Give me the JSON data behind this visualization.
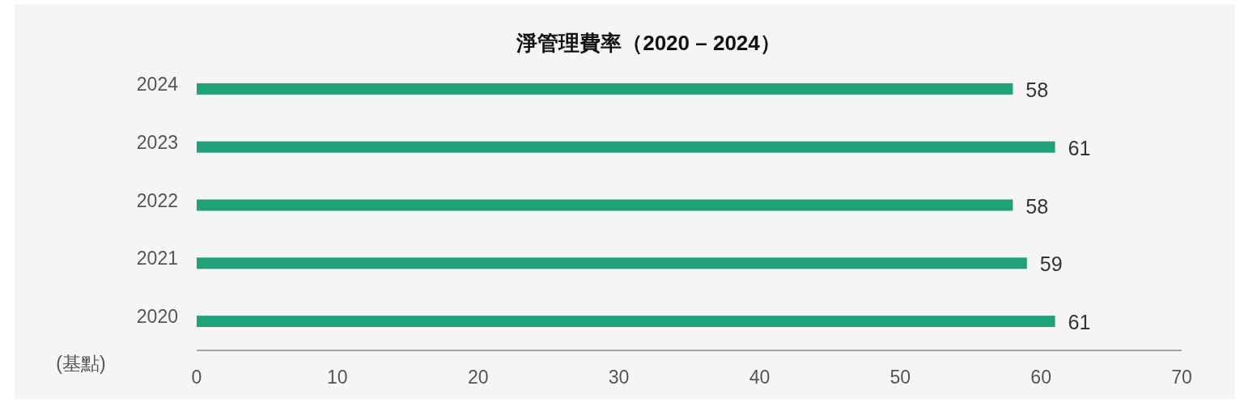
{
  "chart_data": {
    "type": "bar",
    "orientation": "horizontal",
    "title": "淨管理費率（2020 – 2024）",
    "xlabel": "(基點)",
    "categories": [
      "2024",
      "2023",
      "2022",
      "2021",
      "2020"
    ],
    "values": [
      58,
      61,
      58,
      59,
      61
    ],
    "color": "#22a07a",
    "xlim": [
      0,
      70
    ],
    "xticks": [
      0,
      10,
      20,
      30,
      40,
      50,
      60,
      70
    ],
    "data_labels": true
  }
}
